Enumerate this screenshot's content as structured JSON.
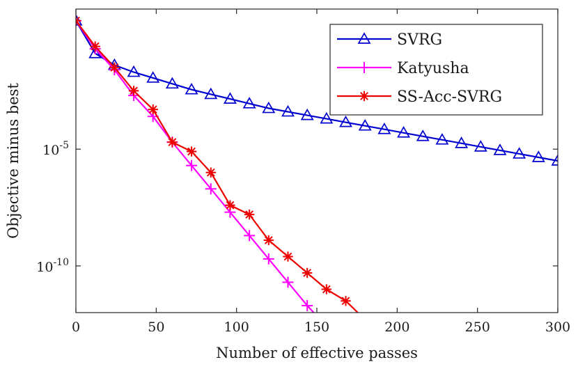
{
  "chart_data": {
    "type": "line",
    "title": "",
    "xlabel": "Number of effective passes",
    "ylabel": "Objective minus best",
    "xlim": [
      0,
      300
    ],
    "ylim_log10": [
      -12,
      1
    ],
    "y_scale": "log",
    "grid": false,
    "legend_position": "top-right",
    "x_ticks": [
      0,
      50,
      100,
      150,
      200,
      250,
      300
    ],
    "x_tick_labels": [
      "0",
      "50",
      "100",
      "150",
      "200",
      "250",
      "300"
    ],
    "y_ticks_log10": [
      -5,
      -10
    ],
    "y_tick_labels": [
      {
        "base": "10",
        "exp": "-5"
      },
      {
        "base": "10",
        "exp": "-10"
      }
    ],
    "series": [
      {
        "name": "SVRG",
        "color": "#0000d0",
        "marker": "triangle",
        "x": [
          0,
          12,
          24,
          36,
          48,
          60,
          72,
          84,
          96,
          108,
          120,
          132,
          144,
          156,
          168,
          180,
          192,
          204,
          216,
          228,
          240,
          252,
          264,
          276,
          288,
          300
        ],
        "log10_y": [
          0.5,
          -0.9,
          -1.4,
          -1.7,
          -1.95,
          -2.2,
          -2.45,
          -2.65,
          -2.85,
          -3.05,
          -3.25,
          -3.4,
          -3.55,
          -3.7,
          -3.85,
          -4.0,
          -4.15,
          -4.3,
          -4.45,
          -4.6,
          -4.75,
          -4.9,
          -5.05,
          -5.2,
          -5.35,
          -5.5
        ]
      },
      {
        "name": "Katyusha",
        "color": "#ff00ff",
        "marker": "plus",
        "x": [
          0,
          12,
          24,
          36,
          48,
          60,
          72,
          84,
          96,
          108,
          120,
          132,
          144,
          156,
          168
        ],
        "log10_y": [
          0.5,
          -0.7,
          -1.6,
          -2.7,
          -3.6,
          -4.7,
          -5.7,
          -6.7,
          -7.7,
          -8.7,
          -9.7,
          -10.7,
          -11.7,
          -12.6,
          -13.4
        ]
      },
      {
        "name": "SS-Acc-SVRG",
        "color": "#ee0000",
        "marker": "asterisk",
        "x": [
          0,
          12,
          24,
          36,
          48,
          60,
          72,
          84,
          96,
          108,
          120,
          132,
          144,
          156,
          168,
          180,
          184
        ],
        "log10_y": [
          0.5,
          -0.6,
          -1.5,
          -2.5,
          -3.3,
          -4.7,
          -5.1,
          -6.0,
          -7.4,
          -7.8,
          -8.9,
          -9.6,
          -10.3,
          -11.0,
          -11.5,
          -12.3,
          -12.6
        ]
      }
    ]
  }
}
